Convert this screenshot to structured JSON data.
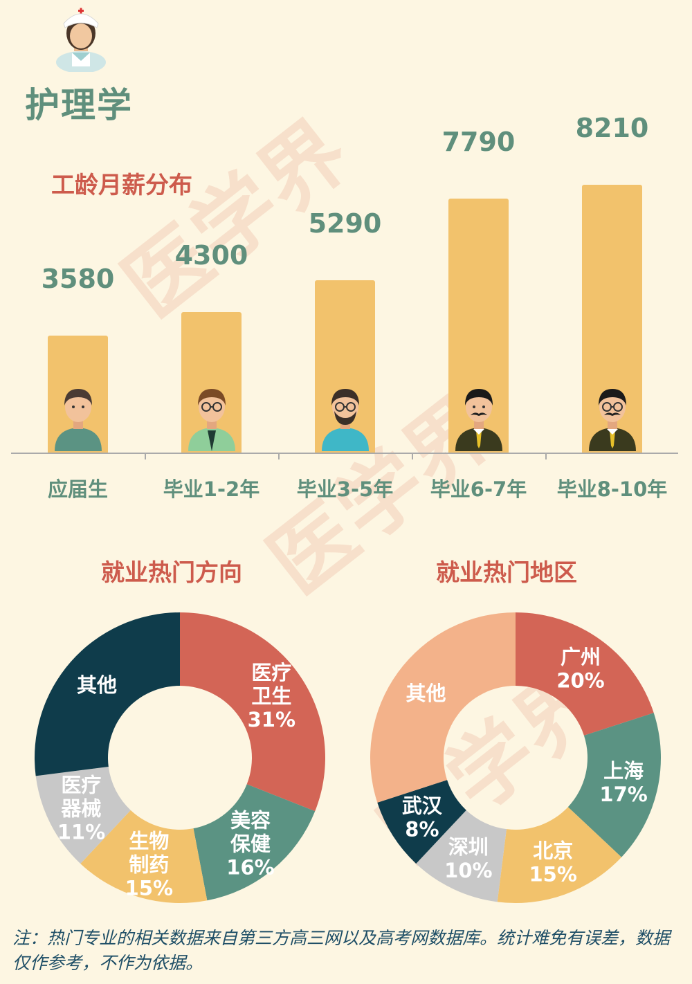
{
  "page_title": "护理学",
  "watermark": "医学界",
  "salary_section": {
    "title": "工龄月薪分布"
  },
  "pie1_section": {
    "title": "就业热门方向"
  },
  "pie2_section": {
    "title": "就业热门地区"
  },
  "note": "注：热门专业的相关数据来自第三方高三网以及高考网数据库。统计难免有误差，数据仅作参考，不作为依据。",
  "colors": {
    "background": "#fdf6e2",
    "bar": "#f2c26c",
    "value_text": "#5f8f7c",
    "title_red": "#cd5b4c",
    "pie_red": "#d36556",
    "pie_dark": "#0f3c4b",
    "pie_green": "#5b9383",
    "pie_yellow": "#f2c26c",
    "pie_gray": "#c8c8c8",
    "pie_peach": "#f3b28a"
  },
  "chart_data": [
    {
      "type": "bar",
      "title": "工龄月薪分布",
      "categories": [
        "应届生",
        "毕业1-2年",
        "毕业3-5年",
        "毕业6-7年",
        "毕业8-10年"
      ],
      "values": [
        3580,
        4300,
        5290,
        7790,
        8210
      ],
      "value_labels": [
        "3580",
        "4300",
        "5290",
        "7790",
        "8210"
      ],
      "avatars": [
        "young-person-icon",
        "glasses-person-icon",
        "bearded-glasses-person-icon",
        "mustache-person-icon",
        "mustache-glasses-person-icon"
      ]
    },
    {
      "type": "pie",
      "title": "就业热门方向",
      "slices": [
        {
          "label": [
            "医疗",
            "卫生"
          ],
          "pct_label": "31%",
          "value": 31,
          "color": "#d36556"
        },
        {
          "label": [
            "美容",
            "保健"
          ],
          "pct_label": "16%",
          "value": 16,
          "color": "#5b9383"
        },
        {
          "label": [
            "生物",
            "制药"
          ],
          "pct_label": "15%",
          "value": 15,
          "color": "#f2c26c"
        },
        {
          "label": [
            "医疗",
            "器械"
          ],
          "pct_label": "11%",
          "value": 11,
          "color": "#c8c8c8"
        },
        {
          "label": [
            "其他"
          ],
          "pct_label": "",
          "value": 27,
          "color": "#0f3c4b"
        }
      ]
    },
    {
      "type": "pie",
      "title": "就业热门地区",
      "slices": [
        {
          "label": [
            "广州"
          ],
          "pct_label": "20%",
          "value": 20,
          "color": "#d36556"
        },
        {
          "label": [
            "上海"
          ],
          "pct_label": "17%",
          "value": 17,
          "color": "#5b9383"
        },
        {
          "label": [
            "北京"
          ],
          "pct_label": "15%",
          "value": 15,
          "color": "#f2c26c"
        },
        {
          "label": [
            "深圳"
          ],
          "pct_label": "10%",
          "value": 10,
          "color": "#c8c8c8"
        },
        {
          "label": [
            "武汉"
          ],
          "pct_label": "8%",
          "value": 8,
          "color": "#0f3c4b"
        },
        {
          "label": [
            "其他"
          ],
          "pct_label": "",
          "value": 30,
          "color": "#f3b28a"
        }
      ]
    }
  ]
}
